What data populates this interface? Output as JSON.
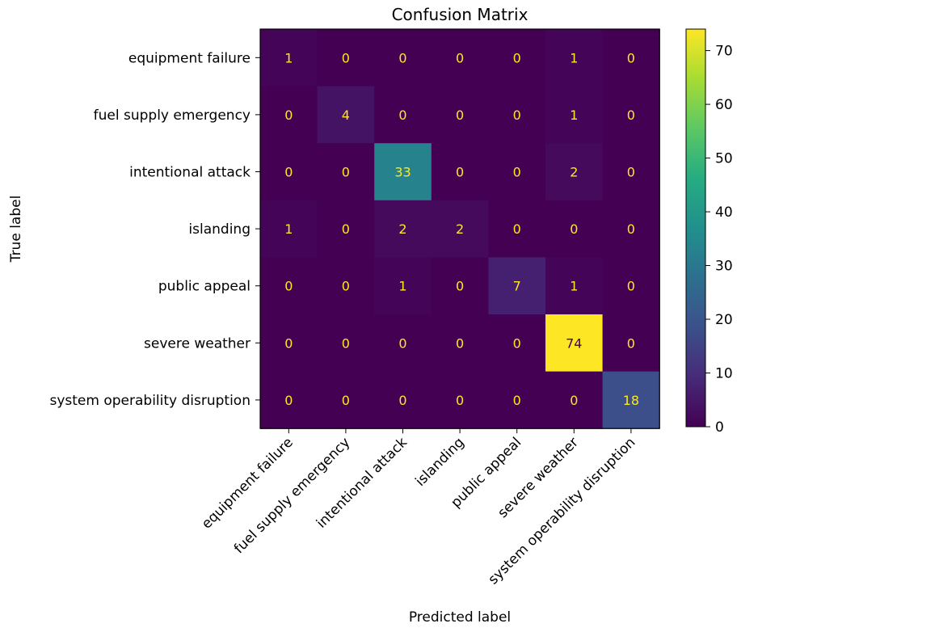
{
  "chart_data": {
    "type": "heatmap",
    "title": "Confusion Matrix",
    "xlabel": "Predicted label",
    "ylabel": "True label",
    "x_categories": [
      "equipment failure",
      "fuel supply emergency",
      "intentional attack",
      "islanding",
      "public appeal",
      "severe weather",
      "system operability disruption"
    ],
    "y_categories": [
      "equipment failure",
      "fuel supply emergency",
      "intentional attack",
      "islanding",
      "public appeal",
      "severe weather",
      "system operability disruption"
    ],
    "values": [
      [
        1,
        0,
        0,
        0,
        0,
        1,
        0
      ],
      [
        0,
        4,
        0,
        0,
        0,
        1,
        0
      ],
      [
        0,
        0,
        33,
        0,
        0,
        2,
        0
      ],
      [
        1,
        0,
        2,
        2,
        0,
        0,
        0
      ],
      [
        0,
        0,
        1,
        0,
        7,
        1,
        0
      ],
      [
        0,
        0,
        0,
        0,
        0,
        74,
        0
      ],
      [
        0,
        0,
        0,
        0,
        0,
        0,
        18
      ]
    ],
    "colorbar": {
      "range": [
        0,
        74
      ],
      "ticks": [
        0,
        10,
        20,
        30,
        40,
        50,
        60,
        70
      ]
    },
    "colormap": "viridis"
  }
}
